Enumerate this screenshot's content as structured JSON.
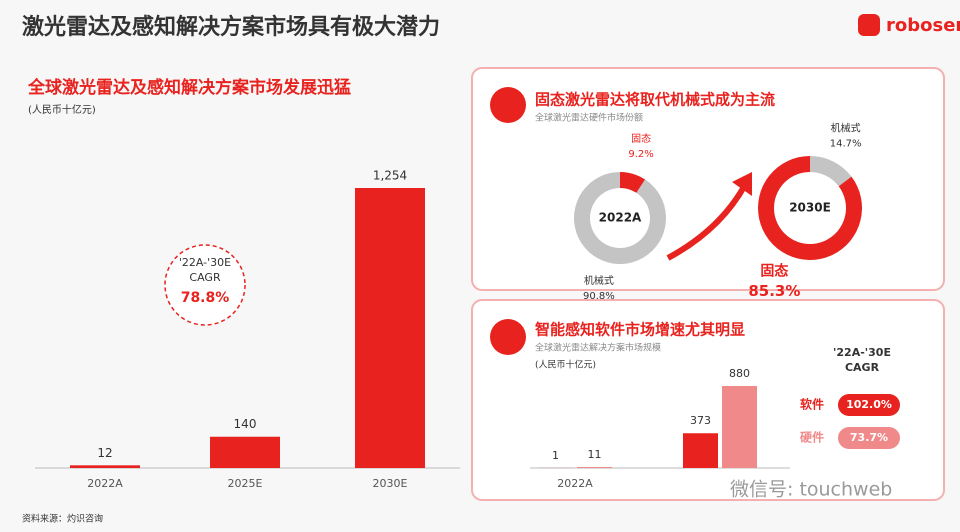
{
  "title": "激光雷达及感知解决方案市场具有极大潜力",
  "logo": "robosense",
  "source": "资料来源：灼识咨询",
  "watermark": "微信号: touchweb",
  "chart_data": [
    {
      "type": "bar",
      "title": "全球激光雷达及感知解决方案市场发展迅猛",
      "subtitle": "(人民币十亿元)",
      "categories": [
        "2022A",
        "2025E",
        "2030E"
      ],
      "values": [
        12,
        140,
        1254
      ],
      "value_labels": [
        "12",
        "140",
        "1,254"
      ],
      "color": "#e8231f",
      "annotation": {
        "label_lines": [
          "'22A-'30E",
          "CAGR"
        ],
        "value": "78.8%"
      }
    },
    {
      "type": "pie",
      "panel_title": "固态激光雷达将取代机械式成为主流",
      "subtitle": "全球激光雷达硬件市场份额",
      "center_label": "2022A",
      "categories": [
        "固态",
        "机械式"
      ],
      "values": [
        9.2,
        90.8
      ],
      "value_labels": [
        "9.2%",
        "90.8%"
      ],
      "colors": [
        "#e8231f",
        "#c4c4c4"
      ]
    },
    {
      "type": "pie",
      "center_label": "2030E",
      "categories": [
        "机械式",
        "固态"
      ],
      "values": [
        14.7,
        85.3
      ],
      "value_labels": [
        "14.7%",
        "85.3%"
      ],
      "colors": [
        "#c4c4c4",
        "#e8231f"
      ]
    },
    {
      "type": "grouped_bar",
      "panel_title": "智能感知软件市场增速尤其明显",
      "subtitle": "全球激光雷达解决方案市场规模",
      "unit": "(人民币十亿元)",
      "categories": [
        "2022A",
        null
      ],
      "legend_title_lines": [
        "'22A-'30E",
        "CAGR"
      ],
      "series": [
        {
          "name": "软件",
          "color": "#e8231f",
          "values": [
            1,
            373
          ],
          "cagr": "102.0%"
        },
        {
          "name": "硬件",
          "color": "#f08a8a",
          "values": [
            11,
            880
          ],
          "cagr": "73.7%"
        }
      ]
    }
  ]
}
